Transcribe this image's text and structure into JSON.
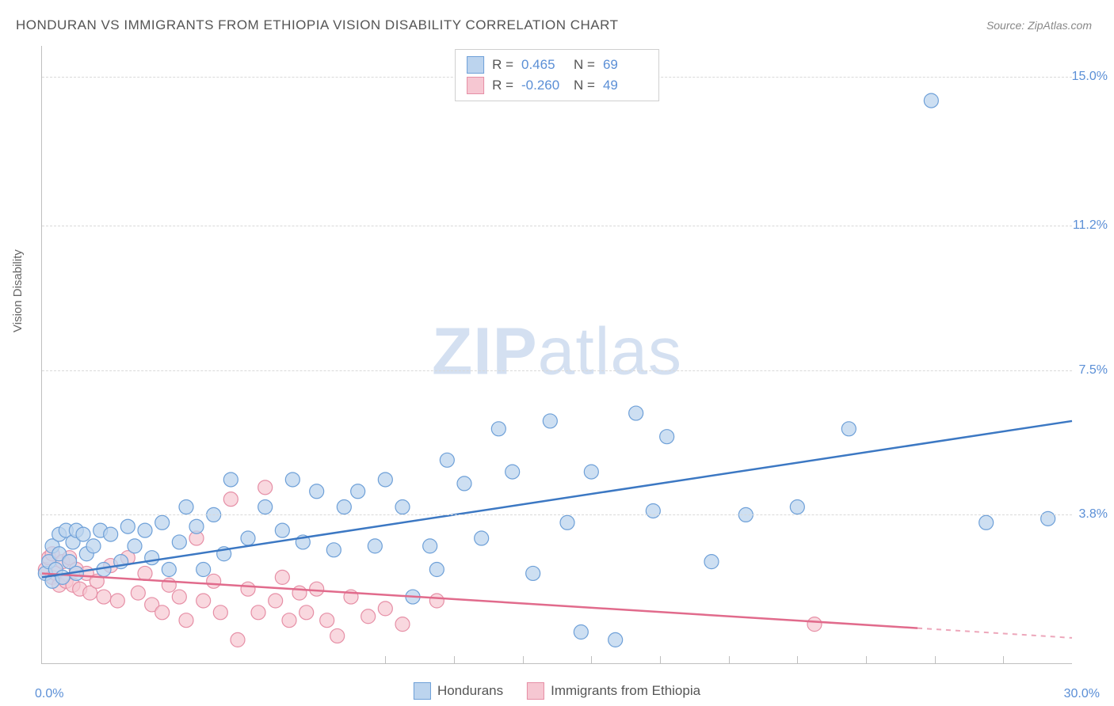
{
  "title": "HONDURAN VS IMMIGRANTS FROM ETHIOPIA VISION DISABILITY CORRELATION CHART",
  "source": "Source: ZipAtlas.com",
  "watermark_zip": "ZIP",
  "watermark_atlas": "atlas",
  "y_axis_label": "Vision Disability",
  "chart": {
    "type": "scatter",
    "background_color": "#ffffff",
    "grid_color": "#d9d9d9",
    "axis_color": "#bfbfbf",
    "label_color": "#5b8fd6",
    "xlim": [
      0,
      30
    ],
    "ylim": [
      0,
      15.8
    ],
    "x_ticks_minor": [
      10,
      12,
      14,
      16,
      18,
      20,
      22,
      24,
      26,
      28
    ],
    "x_tick_labels": {
      "left": "0.0%",
      "right": "30.0%"
    },
    "y_ticks": [
      {
        "value": 3.8,
        "label": "3.8%"
      },
      {
        "value": 7.5,
        "label": "7.5%"
      },
      {
        "value": 11.2,
        "label": "11.2%"
      },
      {
        "value": 15.0,
        "label": "15.0%"
      }
    ],
    "series": [
      {
        "name": "Hondurans",
        "fill": "#bcd4ee",
        "stroke": "#6ea0d8",
        "line_color": "#3c78c3",
        "marker_radius": 9,
        "marker_opacity": 0.75,
        "R_label": "R =",
        "R": "0.465",
        "N_label": "N =",
        "N": "69",
        "trend": {
          "x1": 0,
          "y1": 2.2,
          "x2": 30,
          "y2": 6.2
        },
        "points": [
          [
            0.1,
            2.3
          ],
          [
            0.2,
            2.6
          ],
          [
            0.3,
            2.1
          ],
          [
            0.3,
            3.0
          ],
          [
            0.4,
            2.4
          ],
          [
            0.5,
            2.8
          ],
          [
            0.5,
            3.3
          ],
          [
            0.6,
            2.2
          ],
          [
            0.7,
            3.4
          ],
          [
            0.8,
            2.6
          ],
          [
            0.9,
            3.1
          ],
          [
            1.0,
            3.4
          ],
          [
            1.0,
            2.3
          ],
          [
            1.2,
            3.3
          ],
          [
            1.3,
            2.8
          ],
          [
            1.5,
            3.0
          ],
          [
            1.7,
            3.4
          ],
          [
            1.8,
            2.4
          ],
          [
            2.0,
            3.3
          ],
          [
            2.3,
            2.6
          ],
          [
            2.5,
            3.5
          ],
          [
            2.7,
            3.0
          ],
          [
            3.0,
            3.4
          ],
          [
            3.2,
            2.7
          ],
          [
            3.5,
            3.6
          ],
          [
            3.7,
            2.4
          ],
          [
            4.0,
            3.1
          ],
          [
            4.2,
            4.0
          ],
          [
            4.5,
            3.5
          ],
          [
            4.7,
            2.4
          ],
          [
            5.0,
            3.8
          ],
          [
            5.3,
            2.8
          ],
          [
            5.5,
            4.7
          ],
          [
            6.0,
            3.2
          ],
          [
            6.5,
            4.0
          ],
          [
            7.0,
            3.4
          ],
          [
            7.3,
            4.7
          ],
          [
            7.6,
            3.1
          ],
          [
            8.0,
            4.4
          ],
          [
            8.5,
            2.9
          ],
          [
            8.8,
            4.0
          ],
          [
            9.2,
            4.4
          ],
          [
            9.7,
            3.0
          ],
          [
            10.0,
            4.7
          ],
          [
            10.5,
            4.0
          ],
          [
            10.8,
            1.7
          ],
          [
            11.3,
            3.0
          ],
          [
            11.5,
            2.4
          ],
          [
            11.8,
            5.2
          ],
          [
            12.3,
            4.6
          ],
          [
            12.8,
            3.2
          ],
          [
            13.3,
            6.0
          ],
          [
            13.7,
            4.9
          ],
          [
            14.3,
            2.3
          ],
          [
            14.8,
            6.2
          ],
          [
            15.3,
            3.6
          ],
          [
            15.7,
            0.8
          ],
          [
            16.0,
            4.9
          ],
          [
            16.7,
            0.6
          ],
          [
            17.3,
            6.4
          ],
          [
            17.8,
            3.9
          ],
          [
            18.2,
            5.8
          ],
          [
            19.5,
            2.6
          ],
          [
            20.5,
            3.8
          ],
          [
            22.0,
            4.0
          ],
          [
            23.5,
            6.0
          ],
          [
            25.9,
            14.4
          ],
          [
            27.5,
            3.6
          ],
          [
            29.3,
            3.7
          ]
        ]
      },
      {
        "name": "Immigrants from Ethiopia",
        "fill": "#f6c7d2",
        "stroke": "#e68fa6",
        "line_color": "#e16b8c",
        "marker_radius": 9,
        "marker_opacity": 0.7,
        "R_label": "R =",
        "R": "-0.260",
        "N_label": "N =",
        "N": "49",
        "trend": {
          "x1": 0,
          "y1": 2.3,
          "x2": 25.5,
          "y2": 0.9,
          "dash_from_x": 25.5,
          "x2_dash": 30,
          "y2_dash": 0.65
        },
        "points": [
          [
            0.1,
            2.4
          ],
          [
            0.2,
            2.7
          ],
          [
            0.3,
            2.2
          ],
          [
            0.3,
            2.8
          ],
          [
            0.4,
            2.3
          ],
          [
            0.5,
            2.0
          ],
          [
            0.6,
            2.6
          ],
          [
            0.7,
            2.1
          ],
          [
            0.8,
            2.7
          ],
          [
            0.9,
            2.0
          ],
          [
            1.0,
            2.4
          ],
          [
            1.1,
            1.9
          ],
          [
            1.3,
            2.3
          ],
          [
            1.4,
            1.8
          ],
          [
            1.6,
            2.1
          ],
          [
            1.8,
            1.7
          ],
          [
            2.0,
            2.5
          ],
          [
            2.2,
            1.6
          ],
          [
            2.5,
            2.7
          ],
          [
            2.8,
            1.8
          ],
          [
            3.0,
            2.3
          ],
          [
            3.2,
            1.5
          ],
          [
            3.5,
            1.3
          ],
          [
            3.7,
            2.0
          ],
          [
            4.0,
            1.7
          ],
          [
            4.2,
            1.1
          ],
          [
            4.5,
            3.2
          ],
          [
            4.7,
            1.6
          ],
          [
            5.0,
            2.1
          ],
          [
            5.2,
            1.3
          ],
          [
            5.5,
            4.2
          ],
          [
            5.7,
            0.6
          ],
          [
            6.0,
            1.9
          ],
          [
            6.3,
            1.3
          ],
          [
            6.5,
            4.5
          ],
          [
            6.8,
            1.6
          ],
          [
            7.0,
            2.2
          ],
          [
            7.2,
            1.1
          ],
          [
            7.5,
            1.8
          ],
          [
            7.7,
            1.3
          ],
          [
            8.0,
            1.9
          ],
          [
            8.3,
            1.1
          ],
          [
            8.6,
            0.7
          ],
          [
            9.0,
            1.7
          ],
          [
            9.5,
            1.2
          ],
          [
            10.0,
            1.4
          ],
          [
            10.5,
            1.0
          ],
          [
            11.5,
            1.6
          ],
          [
            22.5,
            1.0
          ]
        ]
      }
    ]
  },
  "bottom_legend": [
    "Hondurans",
    "Immigrants from Ethiopia"
  ]
}
